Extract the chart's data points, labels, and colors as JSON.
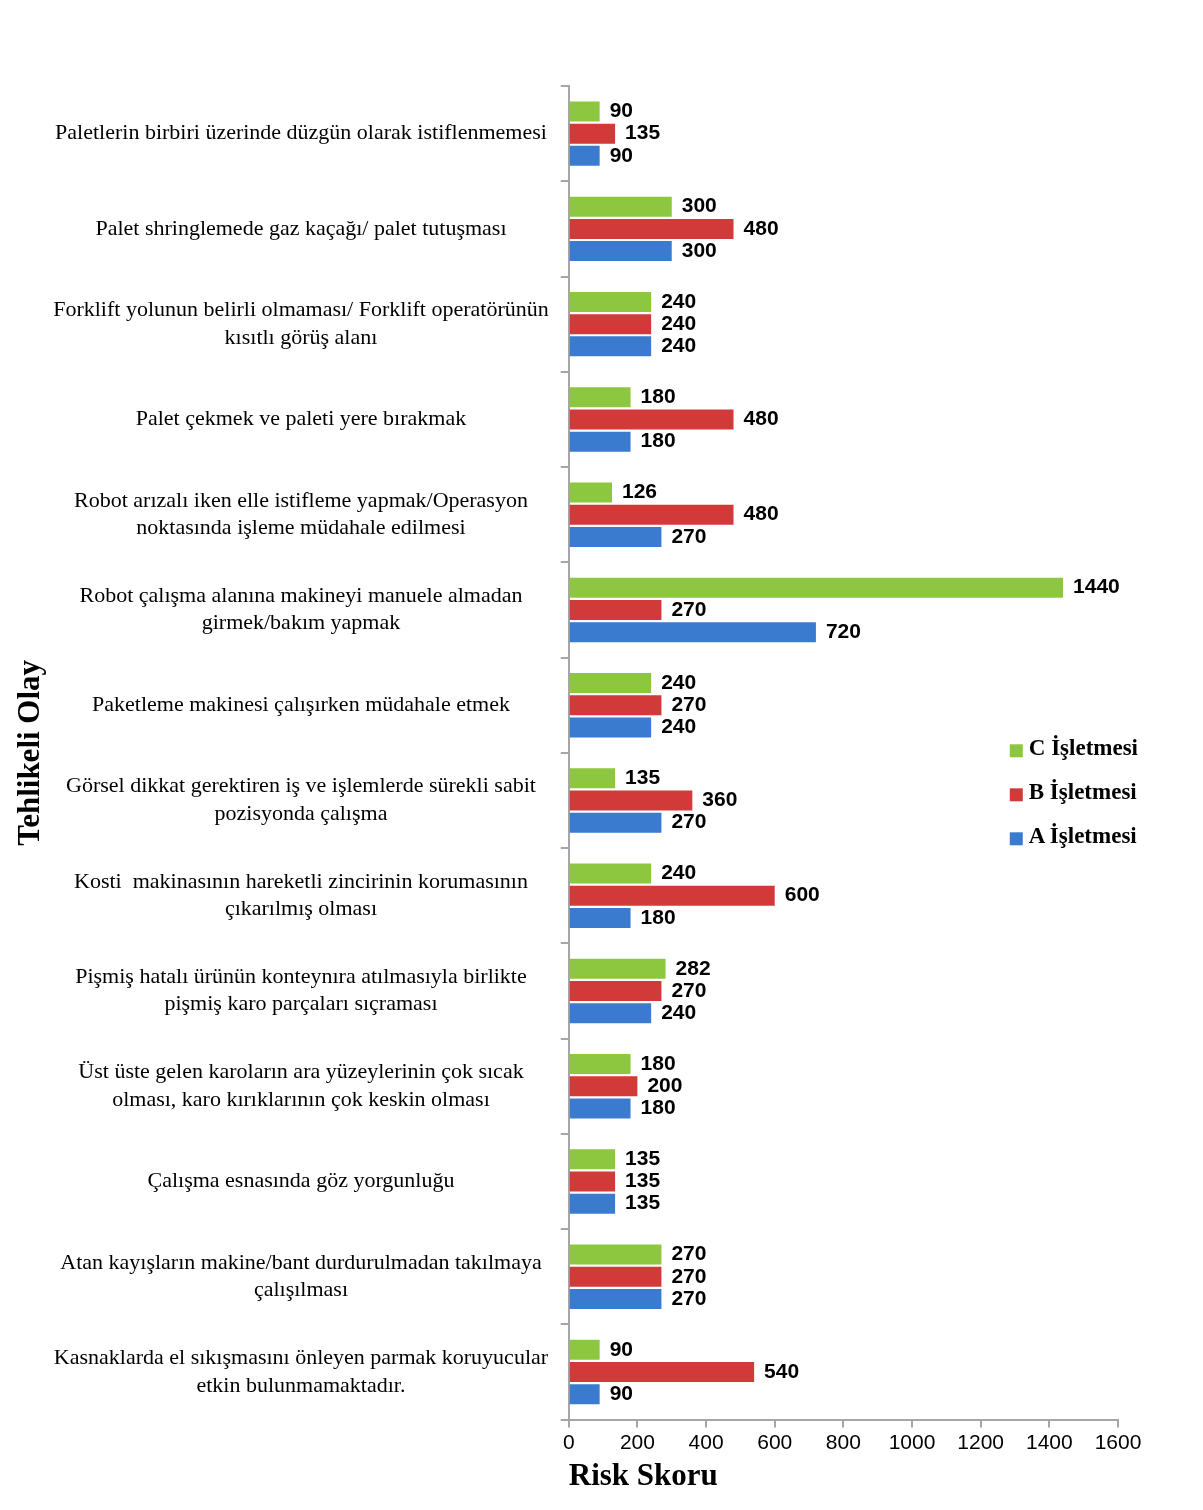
{
  "chart_data": {
    "type": "bar",
    "orientation": "horizontal",
    "xlabel": "Risk Skoru",
    "ylabel": "Tehlikeli Olay",
    "categories": [
      "Paletlerin birbiri üzerinde düzgün olarak istiflenmemesi",
      "Palet shringlemede gaz kaçağı/ palet tutuşması",
      "Forklift yolunun belirli olmaması/ Forklift operatörünün kısıtlı görüş alanı",
      "Palet çekmek ve paleti yere bırakmak",
      "Robot arızalı iken elle istifleme yapmak/Operasyon noktasında işleme müdahale edilmesi",
      "Robot çalışma alanına makineyi manuele almadan girmek/bakım yapmak",
      "Paketleme makinesi çalışırken müdahale etmek",
      "Görsel dikkat gerektiren iş ve işlemlerde sürekli sabit pozisyonda çalışma",
      "Kosti  makinasının hareketli zincirinin korumasının çıkarılmış olması",
      "Pişmiş hatalı ürünün konteynıra atılmasıyla birlikte pişmiş karo parçaları sıçraması",
      "Üst üste gelen karoların ara yüzeylerinin çok sıcak olması, karo kırıklarının çok keskin olması",
      "Çalışma esnasında göz yorgunluğu",
      "Atan kayışların makine/bant durdurulmadan takılmaya çalışılması",
      "Kasnaklarda el sıkışmasını önleyen parmak koruyucular etkin bulunmamaktadır."
    ],
    "series": [
      {
        "name": "C İşletmesi",
        "color": "#8dc63f",
        "values": [
          90,
          300,
          240,
          180,
          126,
          1440,
          240,
          135,
          240,
          282,
          180,
          135,
          270,
          90
        ]
      },
      {
        "name": "B İşletmesi",
        "color": "#d23a3a",
        "values": [
          135,
          480,
          240,
          480,
          480,
          270,
          270,
          360,
          600,
          270,
          200,
          135,
          270,
          540
        ]
      },
      {
        "name": "A İşletmesi",
        "color": "#3a7bd0",
        "values": [
          90,
          300,
          240,
          180,
          270,
          720,
          240,
          270,
          180,
          240,
          180,
          135,
          270,
          90
        ]
      }
    ],
    "xlim": [
      0,
      1600
    ],
    "xticks": [
      0,
      200,
      400,
      600,
      800,
      1000,
      1200,
      1400,
      1600
    ],
    "data_labels": true,
    "legend": "right"
  }
}
